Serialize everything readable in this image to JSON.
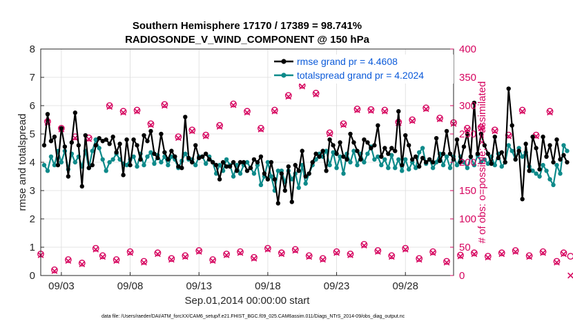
{
  "chart_data": {
    "type": "line",
    "title_line1": "Southern Hemisphere 17170 / 17389 = 98.741%",
    "title_line2": "RADIOSONDE_V_WIND_COMPONENT @ 150 hPa",
    "ylabel_left": "rmse and totalspread",
    "ylabel_right": "# of obs: o=possible; ×=assimilated",
    "xlabel": "Sep.01,2014 00:00:00 start",
    "footer": "data file: /Users/raeder/DAI/ATM_forcXX/CAM6_setup/f.e21.FHIST_BGC.f09_025.CAM6assim.011/Diags_NTrS_2014-09/obs_diag_output.nc",
    "xlim": [
      1.5,
      31.5
    ],
    "ylim_left": [
      0,
      8
    ],
    "ylim_right": [
      0,
      400
    ],
    "yticks_left": [
      "0",
      "1",
      "2",
      "3",
      "4",
      "5",
      "6",
      "7",
      "8"
    ],
    "yticks_right": [
      "0",
      "50",
      "100",
      "150",
      "200",
      "250",
      "300",
      "350",
      "400"
    ],
    "xticks": [
      {
        "x": 3,
        "label": "09/03"
      },
      {
        "x": 8,
        "label": "09/08"
      },
      {
        "x": 13,
        "label": "09/13"
      },
      {
        "x": 18,
        "label": "09/18"
      },
      {
        "x": 23,
        "label": "09/23"
      },
      {
        "x": 28,
        "label": "09/28"
      }
    ],
    "grid": true,
    "legend_position": "top-right",
    "series": [
      {
        "name": "rmse grand pr = 4.4608",
        "color": "#000000",
        "axis": "left",
        "start_day": 1.75,
        "step_days": 0.25,
        "values": [
          4.6,
          5.7,
          4.75,
          4.9,
          3.9,
          5.2,
          4.55,
          3.5,
          4.7,
          5.75,
          4.6,
          3.15,
          4.95,
          3.8,
          3.9,
          4.6,
          4.85,
          4.75,
          4.8,
          4.65,
          4.9,
          4.35,
          4.65,
          3.55,
          4.8,
          3.9,
          4.8,
          4.6,
          4.1,
          4.95,
          4.75,
          5.1,
          4.3,
          4.15,
          5.0,
          4.35,
          4.1,
          4.4,
          4.2,
          3.85,
          3.8,
          5.6,
          4.15,
          4.0,
          4.6,
          4.15,
          4.2,
          4.3,
          4.1,
          4.0,
          3.9,
          3.4,
          4.0,
          3.85,
          3.85,
          4.0,
          3.7,
          4.0,
          4.0,
          3.7,
          3.8,
          4.1,
          4.0,
          4.2,
          3.6,
          3.4,
          4.0,
          3.4,
          2.55,
          3.6,
          3.0,
          3.85,
          2.6,
          3.9,
          3.7,
          4.4,
          3.5,
          3.6,
          4.0,
          4.3,
          4.2,
          4.4,
          3.7,
          4.8,
          4.6,
          4.3,
          4.7,
          4.2,
          4.1,
          5.0,
          4.7,
          4.4,
          4.1,
          4.8,
          4.7,
          4.5,
          4.6,
          5.3,
          4.2,
          4.5,
          4.3,
          4.5,
          4.4,
          5.8,
          3.9,
          4.95,
          4.6,
          4.1,
          4.2,
          3.85,
          4.15,
          4.0,
          4.1,
          4.0,
          4.85,
          4.05,
          4.3,
          5.1,
          4.3,
          4.1,
          4.8,
          4.0,
          4.55,
          5.0,
          4.2,
          6.1,
          4.3,
          5.0,
          4.6,
          4.3,
          3.95,
          4.9,
          4.15,
          4.35,
          4.0,
          6.6,
          5.3,
          4.1,
          4.4,
          2.7,
          4.65,
          3.7,
          4.9,
          4.5,
          3.75,
          4.9,
          4.2,
          4.6,
          4.0,
          4.8,
          4.1,
          4.25,
          4.0
        ]
      },
      {
        "name": "totalspread grand pr = 4.2024",
        "color": "#0d8a8a",
        "axis": "left",
        "start_day": 1.75,
        "step_days": 0.25,
        "values": [
          3.9,
          3.7,
          4.2,
          3.9,
          4.4,
          4.0,
          4.4,
          3.75,
          4.3,
          4.0,
          4.2,
          3.85,
          4.4,
          3.8,
          4.4,
          4.8,
          4.5,
          4.1,
          3.7,
          4.0,
          4.1,
          4.3,
          4.1,
          3.95,
          3.9,
          4.1,
          4.2,
          3.85,
          4.3,
          3.9,
          4.2,
          4.35,
          3.95,
          4.25,
          4.0,
          4.2,
          3.9,
          4.2,
          4.1,
          3.8,
          4.05,
          4.3,
          4.1,
          4.1,
          3.9,
          4.2,
          4.2,
          3.95,
          4.2,
          4.0,
          3.6,
          3.9,
          3.7,
          4.1,
          3.9,
          3.5,
          3.9,
          3.6,
          3.9,
          4.0,
          3.8,
          3.6,
          3.9,
          3.2,
          3.5,
          4.0,
          3.5,
          3.0,
          3.7,
          3.7,
          3.3,
          3.7,
          3.4,
          3.6,
          3.1,
          3.9,
          3.25,
          3.6,
          3.9,
          4.1,
          4.3,
          4.2,
          4.4,
          3.9,
          4.35,
          3.8,
          4.2,
          3.6,
          4.3,
          4.0,
          4.4,
          3.9,
          4.3,
          4.0,
          4.3,
          4.55,
          4.1,
          4.2,
          3.9,
          4.1,
          3.8,
          4.25,
          3.8,
          4.1,
          3.7,
          4.1,
          3.75,
          4.0,
          3.8,
          4.35,
          4.5,
          3.95,
          4.1,
          3.8,
          4.0,
          4.3,
          3.9,
          4.2,
          3.8,
          4.2,
          3.9,
          4.2,
          4.0,
          3.8,
          4.2,
          3.9,
          4.25,
          4.0,
          4.1,
          3.95,
          4.2,
          3.9,
          4.3,
          3.85,
          4.0,
          4.6,
          4.4,
          4.1,
          4.5,
          4.2,
          4.35,
          3.85,
          3.7,
          3.6,
          3.5,
          3.9,
          3.7,
          3.4,
          3.2,
          3.9,
          3.6,
          4.6,
          4.4
        ]
      },
      {
        "name": "possible",
        "color": "#d6045f",
        "axis": "right",
        "marker": "o",
        "start_day": 1.5,
        "step_days": 0.5,
        "values": [
          38,
          272,
          10,
          260,
          28,
          245,
          22,
          243,
          48,
          35,
          300,
          28,
          290,
          42,
          292,
          25,
          268,
          40,
          302,
          30,
          245,
          35,
          257,
          44,
          248,
          28,
          265,
          38,
          303,
          42,
          290,
          32,
          260,
          48,
          292,
          40,
          318,
          46,
          336,
          35,
          322,
          30,
          252,
          42,
          268,
          38,
          294,
          55,
          293,
          44,
          292,
          35,
          271,
          48,
          275,
          30,
          296,
          42,
          278,
          25,
          270,
          36,
          260,
          40,
          262,
          34,
          257,
          40,
          248,
          44,
          292,
          35,
          248,
          42,
          290,
          25,
          40,
          34
        ],
        "assimilated": [
          36,
          270,
          8,
          258,
          26,
          243,
          20,
          241,
          46,
          33,
          298,
          26,
          288,
          40,
          290,
          23,
          266,
          38,
          300,
          28,
          243,
          33,
          255,
          42,
          246,
          26,
          263,
          36,
          301,
          40,
          288,
          30,
          258,
          46,
          290,
          38,
          316,
          44,
          334,
          33,
          320,
          28,
          250,
          40,
          266,
          36,
          292,
          53,
          291,
          42,
          290,
          33,
          269,
          46,
          273,
          28,
          294,
          40,
          276,
          23,
          268,
          34,
          258,
          38,
          260,
          32,
          255,
          38,
          246,
          42,
          290,
          33,
          246,
          40,
          288,
          23,
          38,
          0
        ]
      }
    ]
  }
}
